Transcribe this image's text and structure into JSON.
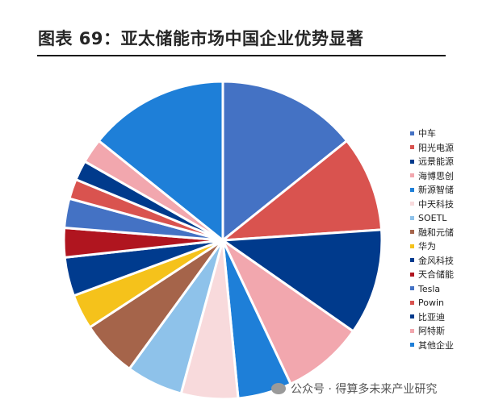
{
  "header": {
    "title": "图表 69：亚太储能市场中国企业优势显著"
  },
  "watermark": {
    "text": "公众号 · 得算多未来产业研究"
  },
  "chart_data": {
    "type": "pie",
    "title": "",
    "legend_position": "right",
    "slices": [
      {
        "label": "中车",
        "value": 14.8,
        "color": "#4472C4"
      },
      {
        "label": "阳光电源",
        "value": 10.1,
        "color": "#D9534F"
      },
      {
        "label": "远景能源",
        "value": 11.2,
        "color": "#003A8C"
      },
      {
        "label": "海博思创",
        "value": 8.6,
        "color": "#F2A7AE"
      },
      {
        "label": "新源智储",
        "value": 5.7,
        "color": "#1E7FD8"
      },
      {
        "label": "中天科技",
        "value": 6.0,
        "color": "#F8DADC"
      },
      {
        "label": "SOETL",
        "value": 6.0,
        "color": "#8EC2EA"
      },
      {
        "label": "融和元储",
        "value": 6.0,
        "color": "#A5644A"
      },
      {
        "label": "华为",
        "value": 3.7,
        "color": "#F5C21B"
      },
      {
        "label": "金风科技",
        "value": 4.1,
        "color": "#003B8E"
      },
      {
        "label": "天合储能",
        "value": 3.1,
        "color": "#B0151F"
      },
      {
        "label": "Tesla",
        "value": 3.1,
        "color": "#4472C4"
      },
      {
        "label": "Powin",
        "value": 2.1,
        "color": "#D9534F"
      },
      {
        "label": "比亚迪",
        "value": 2.1,
        "color": "#003A8C"
      },
      {
        "label": "阿特斯",
        "value": 2.6,
        "color": "#F2A7AE"
      },
      {
        "label": "其他企业",
        "value": 14.8,
        "color": "#1E7FD8"
      }
    ]
  }
}
